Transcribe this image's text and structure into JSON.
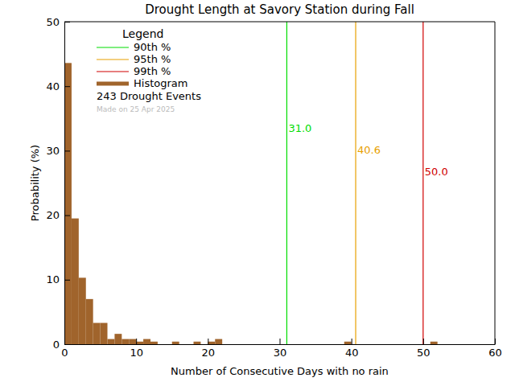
{
  "chart_data": {
    "type": "histogram",
    "title": "Drought Length at Savory Station during Fall",
    "x_label": "Number of Consecutive Days with no rain",
    "y_label": "Probability (%)",
    "bins": [
      0,
      1,
      2,
      3,
      4,
      5,
      6,
      7,
      8,
      9,
      10,
      11,
      12,
      13,
      14,
      15,
      16,
      17,
      18,
      19,
      20,
      21,
      22,
      23,
      24,
      25,
      26,
      27,
      28,
      29,
      30,
      31,
      32,
      33,
      34,
      35,
      36,
      37,
      38,
      39,
      40,
      41,
      42,
      43,
      44,
      45,
      46,
      47,
      48,
      49,
      50,
      51,
      52,
      53,
      54,
      55,
      56,
      57,
      58,
      59,
      60
    ],
    "series": [
      {
        "name": "Histogram",
        "color": "#a0642c",
        "values": [
          43.6,
          19.5,
          10.3,
          7.0,
          3.3,
          3.3,
          0.8,
          1.6,
          0.8,
          0.8,
          0.4,
          0.8,
          0.4,
          0,
          0,
          0.4,
          0,
          0,
          0.4,
          0,
          0.4,
          0.8,
          0,
          0,
          0,
          0,
          0,
          0,
          0,
          0,
          0,
          0,
          0,
          0,
          0,
          0,
          0,
          0,
          0,
          0.4,
          0,
          0,
          0,
          0,
          0,
          0,
          0,
          0,
          0,
          0,
          0,
          0.4,
          0,
          0,
          0,
          0,
          0,
          0,
          0,
          0
        ]
      }
    ],
    "thresholds": {
      "names": [
        "90th %",
        "95th %",
        "99th %"
      ],
      "values": [
        31.0,
        40.6,
        50.0
      ],
      "value_labels": [
        "31.0",
        "40.6",
        "50.0"
      ],
      "colors": [
        "#00dd00",
        "#e8a000",
        "#d00000"
      ]
    },
    "legend_title": "Legend",
    "annotations": [
      "243 Drought Events",
      "Made on 25 Apr 2025"
    ],
    "legend": "top-left",
    "xlim": [
      0,
      60
    ],
    "xticks": [
      0,
      10,
      20,
      30,
      40,
      50,
      60
    ],
    "ylim": [
      0,
      50
    ],
    "yticks": [
      0,
      10,
      20,
      30,
      40,
      50
    ]
  }
}
